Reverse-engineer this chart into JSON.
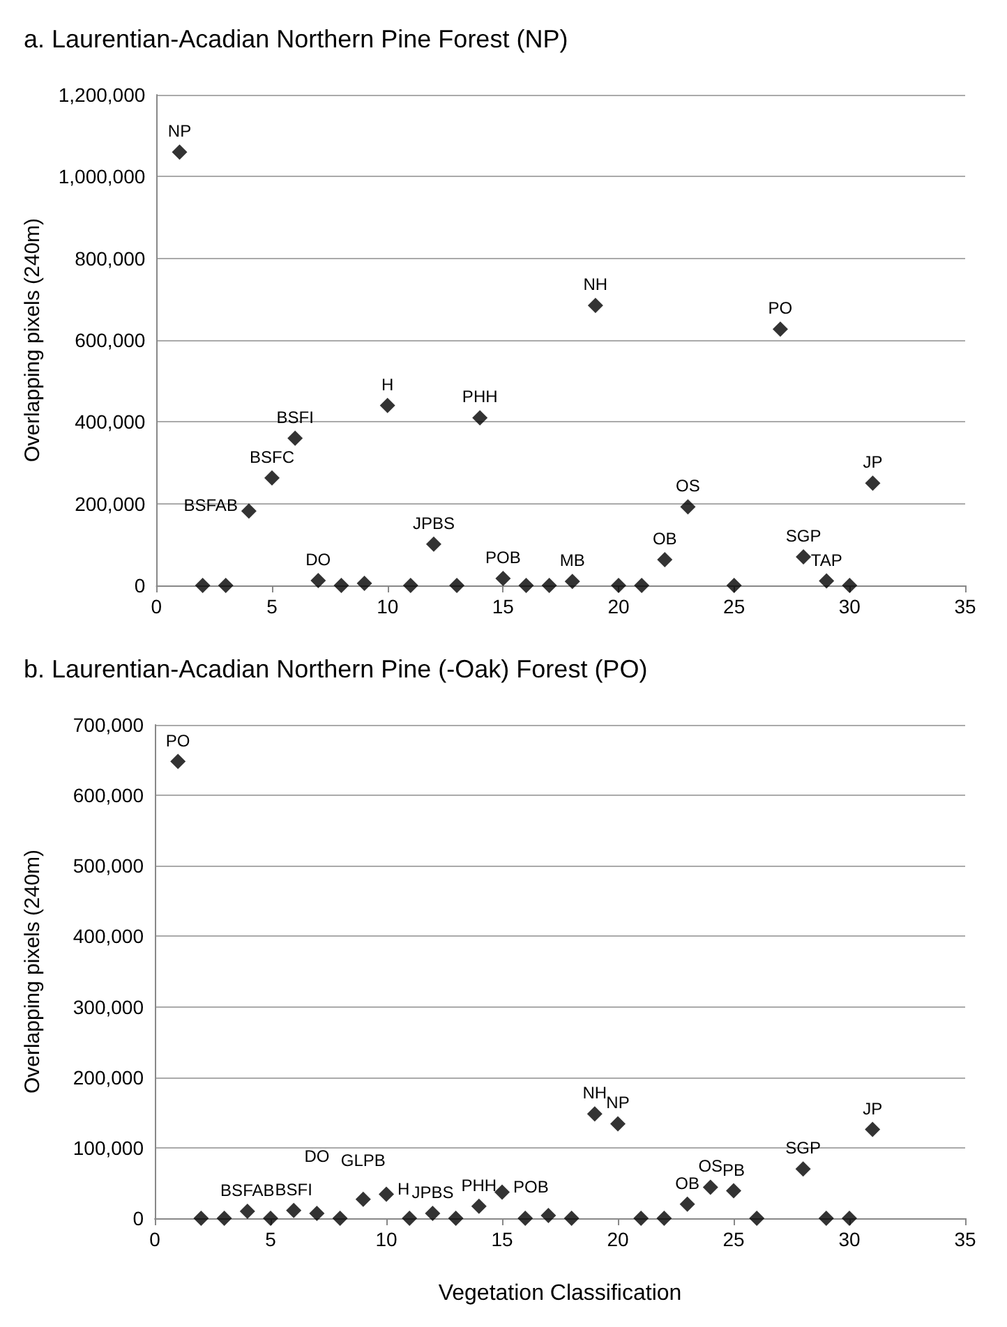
{
  "chart_data": [
    {
      "type": "scatter",
      "title": "a. Laurentian-Acadian Northern Pine Forest (NP)",
      "ylabel": "Overlapping pixels (240m)",
      "color": "#000000",
      "marker": "diamond",
      "grid": "y",
      "x": [
        1,
        2,
        3,
        4,
        5,
        6,
        7,
        8,
        9,
        10,
        11,
        12,
        13,
        14,
        15,
        16,
        17,
        18,
        19,
        20,
        21,
        22,
        23,
        25,
        27,
        28,
        29,
        30,
        31
      ],
      "values": [
        1060000,
        0,
        0,
        182000,
        263000,
        360000,
        12000,
        0,
        5000,
        440000,
        0,
        101000,
        0,
        410000,
        17000,
        0,
        0,
        10000,
        685000,
        0,
        0,
        63000,
        192000,
        0,
        627000,
        70000,
        11000,
        0,
        250000
      ],
      "xlim": [
        0,
        35
      ],
      "xticks": [
        0,
        5,
        10,
        15,
        20,
        25,
        30,
        35
      ],
      "ylim": [
        0,
        1200000
      ],
      "yticks": [
        {
          "value": 0,
          "label": "0"
        },
        {
          "value": 200000,
          "label": "200,000"
        },
        {
          "value": 400000,
          "label": "400,000"
        },
        {
          "value": 600000,
          "label": "600,000"
        },
        {
          "value": 800000,
          "label": "800,000"
        },
        {
          "value": 1000000,
          "label": "1,000,000"
        },
        {
          "value": 1200000,
          "label": "1,200,000"
        }
      ],
      "annotations": [
        {
          "text": "NP",
          "x": 1,
          "y": 1060000
        },
        {
          "text": "BSFAB",
          "x": 4,
          "y": 182000
        },
        {
          "text": "BSFC",
          "x": 5,
          "y": 263000
        },
        {
          "text": "BSFI",
          "x": 6,
          "y": 360000
        },
        {
          "text": "DO",
          "x": 7,
          "y": 12000
        },
        {
          "text": "H",
          "x": 10,
          "y": 440000
        },
        {
          "text": "JPBS",
          "x": 12,
          "y": 101000
        },
        {
          "text": "PHH",
          "x": 14,
          "y": 410000
        },
        {
          "text": "POB",
          "x": 15,
          "y": 17000
        },
        {
          "text": "MB",
          "x": 18,
          "y": 10000
        },
        {
          "text": "NH",
          "x": 19,
          "y": 685000
        },
        {
          "text": "OB",
          "x": 22,
          "y": 63000
        },
        {
          "text": "OS",
          "x": 23,
          "y": 192000
        },
        {
          "text": "PO",
          "x": 27,
          "y": 627000
        },
        {
          "text": "SGP",
          "x": 28,
          "y": 70000
        },
        {
          "text": "TAP",
          "x": 29,
          "y": 11000
        },
        {
          "text": "JP",
          "x": 31,
          "y": 250000
        }
      ]
    },
    {
      "type": "scatter",
      "title": "b. Laurentian-Acadian Northern Pine (-Oak) Forest (PO)",
      "xlabel": "Vegetation Classification",
      "ylabel": "Overlapping pixels (240m)",
      "color": "#000000",
      "marker": "diamond",
      "grid": "y",
      "x": [
        1,
        2,
        3,
        4,
        5,
        6,
        7,
        8,
        9,
        10,
        11,
        12,
        13,
        14,
        15,
        16,
        17,
        18,
        19,
        20,
        21,
        22,
        23,
        24,
        25,
        26,
        28,
        29,
        30,
        31
      ],
      "values": [
        648000,
        0,
        0,
        10000,
        0,
        11000,
        7000,
        0,
        27000,
        34000,
        0,
        7000,
        0,
        17000,
        37000,
        0,
        4000,
        0,
        148000,
        134000,
        0,
        0,
        20000,
        44000,
        39000,
        0,
        70000,
        0,
        0,
        126000
      ],
      "xlim": [
        0,
        35
      ],
      "xticks": [
        0,
        5,
        10,
        15,
        20,
        25,
        30,
        35
      ],
      "ylim": [
        0,
        700000
      ],
      "yticks": [
        {
          "value": 0,
          "label": "0"
        },
        {
          "value": 100000,
          "label": "100,000"
        },
        {
          "value": 200000,
          "label": "200,000"
        },
        {
          "value": 300000,
          "label": "300,000"
        },
        {
          "value": 400000,
          "label": "400,000"
        },
        {
          "value": 500000,
          "label": "500,000"
        },
        {
          "value": 600000,
          "label": "600,000"
        },
        {
          "value": 700000,
          "label": "700,000"
        }
      ],
      "annotations": [
        {
          "text": "PO",
          "x": 1,
          "y": 648000
        },
        {
          "text": "BSFAB",
          "x": 4,
          "y": 10000
        },
        {
          "text": "BSFI",
          "x": 6,
          "y": 11000
        },
        {
          "text": "DO",
          "x": 7,
          "y": 7000
        },
        {
          "text": "GLPB",
          "x": 9,
          "y": 27000
        },
        {
          "text": "H",
          "x": 10,
          "y": 34000
        },
        {
          "text": "JPBS",
          "x": 12,
          "y": 7000
        },
        {
          "text": "PHH",
          "x": 14,
          "y": 17000
        },
        {
          "text": "POB",
          "x": 15,
          "y": 37000
        },
        {
          "text": "NH",
          "x": 19,
          "y": 148000
        },
        {
          "text": "NP",
          "x": 20,
          "y": 134000
        },
        {
          "text": "OB",
          "x": 23,
          "y": 20000
        },
        {
          "text": "OS",
          "x": 24,
          "y": 44000
        },
        {
          "text": "PB",
          "x": 25,
          "y": 39000
        },
        {
          "text": "SGP",
          "x": 28,
          "y": 70000
        },
        {
          "text": "JP",
          "x": 31,
          "y": 126000
        }
      ]
    }
  ]
}
